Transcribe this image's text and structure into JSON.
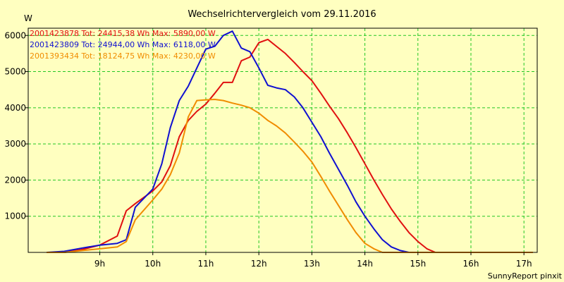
{
  "chart_data": {
    "type": "line",
    "title": "Wechselrichtervergleich vom 29.11.2016",
    "ylabel": "W",
    "footer": "SunnyReport pinxit",
    "ylim": [
      0,
      6200
    ],
    "xlim": [
      7.65,
      17.25
    ],
    "y_ticks": [
      1000,
      2000,
      3000,
      4000,
      5000,
      6000
    ],
    "y_tick_labels": [
      "1000",
      "2000",
      "3000",
      "4000",
      "5000",
      "6000"
    ],
    "x_ticks": [
      9,
      10,
      11,
      12,
      13,
      14,
      15,
      16,
      17
    ],
    "x_tick_labels": [
      "9h",
      "10h",
      "11h",
      "12h",
      "13h",
      "14h",
      "15h",
      "16h",
      "17h"
    ],
    "grid": true,
    "legend_position": "top-left",
    "background": "#ffffc0",
    "grid_color": "#22c722",
    "series": [
      {
        "name": "2001423878 Tot: 24415,38 Wh Max: 5890,00 W",
        "color": "#e01010",
        "x": [
          8.0,
          8.33,
          8.67,
          9.0,
          9.33,
          9.5,
          9.67,
          10.0,
          10.17,
          10.33,
          10.5,
          10.67,
          10.83,
          11.0,
          11.17,
          11.33,
          11.5,
          11.67,
          11.83,
          12.0,
          12.17,
          12.33,
          12.5,
          12.67,
          12.83,
          13.0,
          13.17,
          13.33,
          13.5,
          13.67,
          13.83,
          14.0,
          14.17,
          14.33,
          14.5,
          14.67,
          14.83,
          15.0,
          15.17,
          15.33,
          15.5,
          15.67,
          15.83,
          16.0,
          16.17,
          16.33,
          16.5,
          16.67,
          16.83,
          17.0,
          17.17
        ],
        "y": [
          0,
          0,
          80,
          200,
          450,
          1150,
          1350,
          1700,
          1950,
          2400,
          3200,
          3650,
          3900,
          4100,
          4400,
          4700,
          4700,
          5300,
          5400,
          5800,
          5890,
          5700,
          5500,
          5250,
          5000,
          4750,
          4400,
          4050,
          3700,
          3300,
          2900,
          2450,
          2000,
          1600,
          1200,
          850,
          550,
          300,
          100,
          0,
          0,
          0,
          0,
          0,
          0,
          0,
          0,
          0,
          0,
          0,
          0
        ]
      },
      {
        "name": "2001423809 Tot: 24944,00 Wh Max: 6118,00 W",
        "color": "#1010d0",
        "x": [
          8.0,
          8.33,
          8.67,
          9.0,
          9.33,
          9.5,
          9.67,
          10.0,
          10.17,
          10.33,
          10.5,
          10.67,
          10.83,
          11.0,
          11.17,
          11.33,
          11.5,
          11.67,
          11.83,
          12.0,
          12.17,
          12.33,
          12.5,
          12.67,
          12.83,
          13.0,
          13.17,
          13.33,
          13.5,
          13.67,
          13.83,
          14.0,
          14.17,
          14.33,
          14.5,
          14.67,
          14.83,
          15.0,
          15.17,
          15.33,
          15.5,
          15.67,
          15.83,
          16.0,
          16.17,
          16.33,
          16.5,
          16.67,
          16.83,
          17.0,
          17.17
        ],
        "y": [
          0,
          30,
          120,
          200,
          250,
          350,
          1250,
          1750,
          2450,
          3450,
          4200,
          4600,
          5100,
          5620,
          5700,
          6000,
          6118,
          5650,
          5550,
          5100,
          4620,
          4550,
          4500,
          4300,
          4000,
          3600,
          3200,
          2750,
          2300,
          1850,
          1400,
          1000,
          650,
          350,
          150,
          50,
          0,
          0,
          0,
          0,
          0,
          0,
          0,
          0,
          0,
          0,
          0,
          0,
          0,
          0,
          0
        ]
      },
      {
        "name": "2001393434 Tot: 18124,75 Wh Max: 4230,00 W",
        "color": "#f08c00",
        "x": [
          8.0,
          8.33,
          8.67,
          9.0,
          9.33,
          9.5,
          9.67,
          10.0,
          10.17,
          10.33,
          10.5,
          10.67,
          10.83,
          11.0,
          11.17,
          11.33,
          11.5,
          11.67,
          11.83,
          12.0,
          12.17,
          12.33,
          12.5,
          12.67,
          12.83,
          13.0,
          13.17,
          13.33,
          13.5,
          13.67,
          13.83,
          14.0,
          14.17,
          14.33,
          14.5,
          14.67,
          14.83,
          15.0,
          15.17,
          15.33,
          15.5,
          15.67,
          15.83,
          16.0,
          16.17,
          16.33,
          16.5,
          16.67,
          16.83,
          17.0,
          17.17
        ],
        "y": [
          0,
          0,
          50,
          100,
          150,
          300,
          900,
          1450,
          1750,
          2150,
          2750,
          3750,
          4200,
          4220,
          4230,
          4200,
          4130,
          4070,
          4000,
          3850,
          3650,
          3500,
          3300,
          3050,
          2800,
          2500,
          2100,
          1700,
          1300,
          900,
          550,
          250,
          100,
          0,
          0,
          0,
          0,
          0,
          0,
          0,
          0,
          0,
          0,
          0,
          0,
          0,
          0,
          0,
          0,
          0,
          0
        ]
      }
    ]
  }
}
